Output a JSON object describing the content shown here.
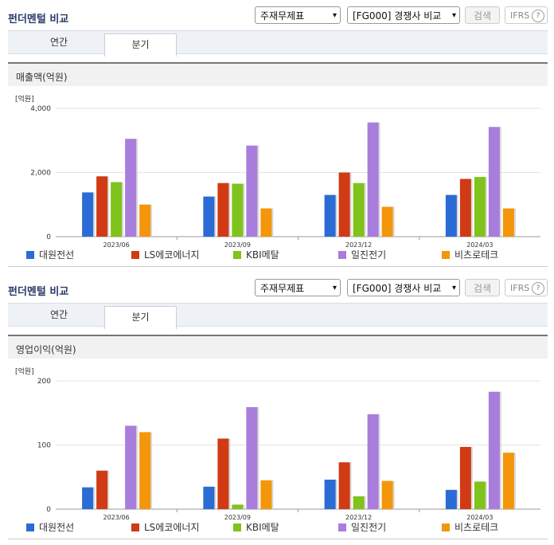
{
  "colors": [
    "#2a6bd6",
    "#d03a14",
    "#7fc31c",
    "#a97ddc",
    "#f4960a"
  ],
  "panels": [
    {
      "title": "펀더멘털 비교",
      "select1": "주재무제표",
      "select2": "[FG000] 경쟁사 비교",
      "search_label": "검색",
      "ifrs_label": "IFRS",
      "ifrs_help": "?",
      "tab_annual": "연간",
      "tab_quarter": "분기",
      "section_title": "매출액(억원)",
      "unit": "[억원]",
      "legend": [
        "대원전선",
        "LS에코에너지",
        "KBI메탈",
        "일진전기",
        "비츠로테크"
      ]
    },
    {
      "title": "펀더멘털 비교",
      "select1": "주재무제표",
      "select2": "[FG000] 경쟁사 비교",
      "search_label": "검색",
      "ifrs_label": "IFRS",
      "ifrs_help": "?",
      "tab_annual": "연간",
      "tab_quarter": "분기",
      "section_title": "영업이익(억원)",
      "unit": "[억원]",
      "legend": [
        "대원전선",
        "LS에코에너지",
        "KBI메탈",
        "일진전기",
        "비츠로테크"
      ]
    }
  ],
  "chart_data": [
    {
      "type": "bar",
      "title": "매출액(억원)",
      "ylabel": "[억원]",
      "categories": [
        "2023/06",
        "2023/09",
        "2023/12",
        "2024/03"
      ],
      "ylim": [
        0,
        4000
      ],
      "yticks": [
        "0",
        "2,000",
        "4,000"
      ],
      "ytick_values": [
        0,
        2000,
        4000
      ],
      "grid": true,
      "legend_position": "bottom",
      "series": [
        {
          "name": "대원전선",
          "values": [
            1380,
            1250,
            1300,
            1300
          ]
        },
        {
          "name": "LS에코에너지",
          "values": [
            1880,
            1670,
            2000,
            1800
          ]
        },
        {
          "name": "KBI메탈",
          "values": [
            1700,
            1650,
            1670,
            1860
          ]
        },
        {
          "name": "일진전기",
          "values": [
            3050,
            2840,
            3560,
            3420
          ]
        },
        {
          "name": "비츠로테크",
          "values": [
            1000,
            880,
            930,
            880
          ]
        }
      ]
    },
    {
      "type": "bar",
      "title": "영업이익(억원)",
      "ylabel": "[억원]",
      "categories": [
        "2023/06",
        "2023/09",
        "2023/12",
        "2024/03"
      ],
      "ylim": [
        0,
        200
      ],
      "yticks": [
        "0",
        "100",
        "200"
      ],
      "ytick_values": [
        0,
        100,
        200
      ],
      "grid": true,
      "legend_position": "bottom",
      "series": [
        {
          "name": "대원전선",
          "values": [
            34,
            35,
            46,
            30
          ]
        },
        {
          "name": "LS에코에너지",
          "values": [
            60,
            110,
            73,
            97
          ]
        },
        {
          "name": "KBI메탈",
          "values": [
            0,
            7,
            20,
            43
          ]
        },
        {
          "name": "일진전기",
          "values": [
            130,
            159,
            148,
            183
          ]
        },
        {
          "name": "비츠로테크",
          "values": [
            120,
            45,
            44,
            88
          ]
        }
      ]
    }
  ]
}
